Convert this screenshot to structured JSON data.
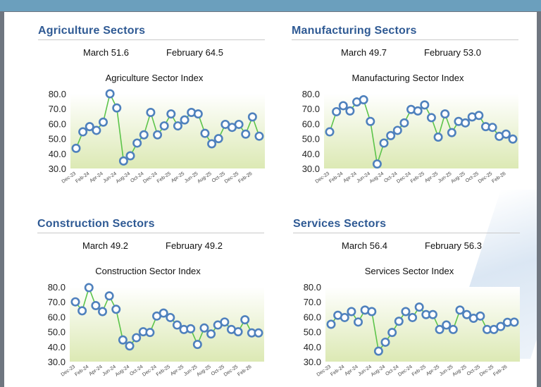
{
  "panels": [
    {
      "heading": "Agriculture Sectors",
      "stat_current": "March 51.6",
      "stat_previous": "February 64.5",
      "chart_title": "Agriculture Sector Index"
    },
    {
      "heading": "Manufacturing Sectors",
      "stat_current": "March 49.7",
      "stat_previous": "February 53.0",
      "chart_title": "Manufacturing Sector Index"
    },
    {
      "heading": "Construction Sectors",
      "stat_current": "March 49.2",
      "stat_previous": "February 49.2",
      "chart_title": "Construction Sector Index"
    },
    {
      "heading": "Services Sectors",
      "stat_current": "March 56.4",
      "stat_previous": "February 56.3",
      "chart_title": "Services Sector Index"
    }
  ],
  "colors": {
    "heading": "#2f5a94",
    "line": "#5cc44a",
    "marker_stroke": "#4f81bd",
    "marker_fill": "#ffffff",
    "area_top": "#ffffff",
    "area_bottom": "#dce9b4"
  },
  "chart_data": [
    {
      "type": "line",
      "title": "Agriculture Sector Index",
      "y_ticks": [
        "80.0",
        "70.0",
        "60.0",
        "50.0",
        "40.0",
        "30.0"
      ],
      "ylim": [
        30,
        80
      ],
      "x_tick_labels": [
        "Dec-23",
        "Feb-24",
        "Apr-24",
        "Jun-24",
        "Aug-24",
        "Oct-24",
        "Dec-24",
        "Feb-25",
        "Apr-25",
        "Jun-25",
        "Aug-25",
        "Oct-25",
        "Dec-25",
        "Feb-26"
      ],
      "x": [
        "Dec-23",
        "Jan-24",
        "Feb-24",
        "Mar-24",
        "Apr-24",
        "May-24",
        "Jun-24",
        "Jul-24",
        "Aug-24",
        "Sep-24",
        "Oct-24",
        "Nov-24",
        "Dec-24",
        "Jan-25",
        "Feb-25",
        "Mar-25",
        "Apr-25",
        "May-25",
        "Jun-25",
        "Jul-25",
        "Aug-25",
        "Sep-25",
        "Oct-25",
        "Nov-25",
        "Dec-25",
        "Jan-26",
        "Feb-26",
        "Mar-26"
      ],
      "values": [
        43.5,
        54.5,
        58.0,
        55.5,
        61.0,
        80.0,
        70.5,
        35.0,
        38.5,
        47.0,
        52.5,
        67.5,
        52.5,
        58.5,
        66.5,
        58.5,
        62.5,
        67.5,
        66.5,
        53.5,
        46.5,
        50.0,
        59.5,
        57.5,
        59.5,
        53.0,
        64.5,
        51.6
      ],
      "grid": false,
      "legend": "none"
    },
    {
      "type": "line",
      "title": "Manufacturing Sector Index",
      "y_ticks": [
        "80.0",
        "70.0",
        "60.0",
        "50.0",
        "40.0",
        "30.0"
      ],
      "ylim": [
        30,
        80
      ],
      "x_tick_labels": [
        "Dec-23",
        "Feb-24",
        "Apr-24",
        "Jun-24",
        "Aug-24",
        "Oct-24",
        "Dec-24",
        "Feb-25",
        "Apr-25",
        "Jun-25",
        "Aug-25",
        "Oct-25",
        "Dec-25",
        "Feb-26"
      ],
      "x": [
        "Dec-23",
        "Jan-24",
        "Feb-24",
        "Mar-24",
        "Apr-24",
        "May-24",
        "Jun-24",
        "Jul-24",
        "Aug-24",
        "Sep-24",
        "Oct-24",
        "Nov-24",
        "Dec-24",
        "Jan-25",
        "Feb-25",
        "Mar-25",
        "Apr-25",
        "May-25",
        "Jun-25",
        "Jul-25",
        "Aug-25",
        "Sep-25",
        "Oct-25",
        "Nov-25",
        "Dec-25",
        "Jan-26",
        "Feb-26",
        "Mar-26"
      ],
      "values": [
        54.5,
        68.0,
        72.0,
        68.5,
        74.5,
        76.0,
        61.5,
        33.0,
        47.0,
        52.0,
        55.5,
        60.5,
        69.5,
        68.5,
        72.5,
        64.0,
        51.0,
        66.5,
        54.0,
        61.5,
        60.5,
        64.5,
        65.5,
        58.0,
        57.5,
        51.5,
        53.0,
        49.7
      ],
      "grid": false,
      "legend": "none"
    },
    {
      "type": "line",
      "title": "Construction Sector Index",
      "y_ticks": [
        "80.0",
        "70.0",
        "60.0",
        "50.0",
        "40.0",
        "30.0"
      ],
      "ylim": [
        30,
        80
      ],
      "x_tick_labels": [
        "Dec-23",
        "Feb-24",
        "Apr-24",
        "Jun-24",
        "Aug-24",
        "Oct-24",
        "Dec-24",
        "Feb-25",
        "Apr-25",
        "Jun-25",
        "Aug-25",
        "Oct-25",
        "Dec-25",
        "Feb-26"
      ],
      "x": [
        "Dec-23",
        "Jan-24",
        "Feb-24",
        "Mar-24",
        "Apr-24",
        "May-24",
        "Jun-24",
        "Jul-24",
        "Aug-24",
        "Sep-24",
        "Oct-24",
        "Nov-24",
        "Dec-24",
        "Jan-25",
        "Feb-25",
        "Mar-25",
        "Apr-25",
        "May-25",
        "Jun-25",
        "Jul-25",
        "Aug-25",
        "Sep-25",
        "Oct-25",
        "Nov-25",
        "Dec-25",
        "Jan-26",
        "Feb-26",
        "Mar-26"
      ],
      "values": [
        70.0,
        64.0,
        79.5,
        67.5,
        63.5,
        74.0,
        65.0,
        44.5,
        40.5,
        46.0,
        50.0,
        49.5,
        60.5,
        62.5,
        59.5,
        54.5,
        51.5,
        52.0,
        41.5,
        52.5,
        48.5,
        54.5,
        56.5,
        51.5,
        50.0,
        58.0,
        49.2,
        49.2
      ],
      "grid": false,
      "legend": "none"
    },
    {
      "type": "line",
      "title": "Services Sector Index",
      "y_ticks": [
        "80.0",
        "70.0",
        "60.0",
        "50.0",
        "40.0",
        "30.0"
      ],
      "ylim": [
        30,
        80
      ],
      "x_tick_labels": [
        "Dec-23",
        "Feb-24",
        "Apr-24",
        "Jun-24",
        "Aug-24",
        "Oct-24",
        "Dec-24",
        "Feb-25",
        "Apr-25",
        "Jun-25",
        "Aug-25",
        "Oct-25",
        "Dec-25",
        "Feb-26"
      ],
      "x": [
        "Dec-23",
        "Jan-24",
        "Feb-24",
        "Mar-24",
        "Apr-24",
        "May-24",
        "Jun-24",
        "Jul-24",
        "Aug-24",
        "Sep-24",
        "Oct-24",
        "Nov-24",
        "Dec-24",
        "Jan-25",
        "Feb-25",
        "Mar-25",
        "Apr-25",
        "May-25",
        "Jun-25",
        "Jul-25",
        "Aug-25",
        "Sep-25",
        "Oct-25",
        "Nov-25",
        "Dec-25",
        "Jan-26",
        "Feb-26",
        "Mar-26"
      ],
      "values": [
        55.0,
        61.0,
        59.5,
        63.5,
        56.5,
        64.5,
        63.5,
        37.0,
        43.0,
        49.5,
        57.0,
        63.5,
        59.5,
        66.5,
        61.5,
        61.5,
        51.5,
        54.5,
        51.5,
        64.5,
        61.5,
        59.0,
        60.5,
        51.5,
        51.5,
        53.5,
        56.3,
        56.4
      ],
      "grid": false,
      "legend": "none"
    }
  ]
}
